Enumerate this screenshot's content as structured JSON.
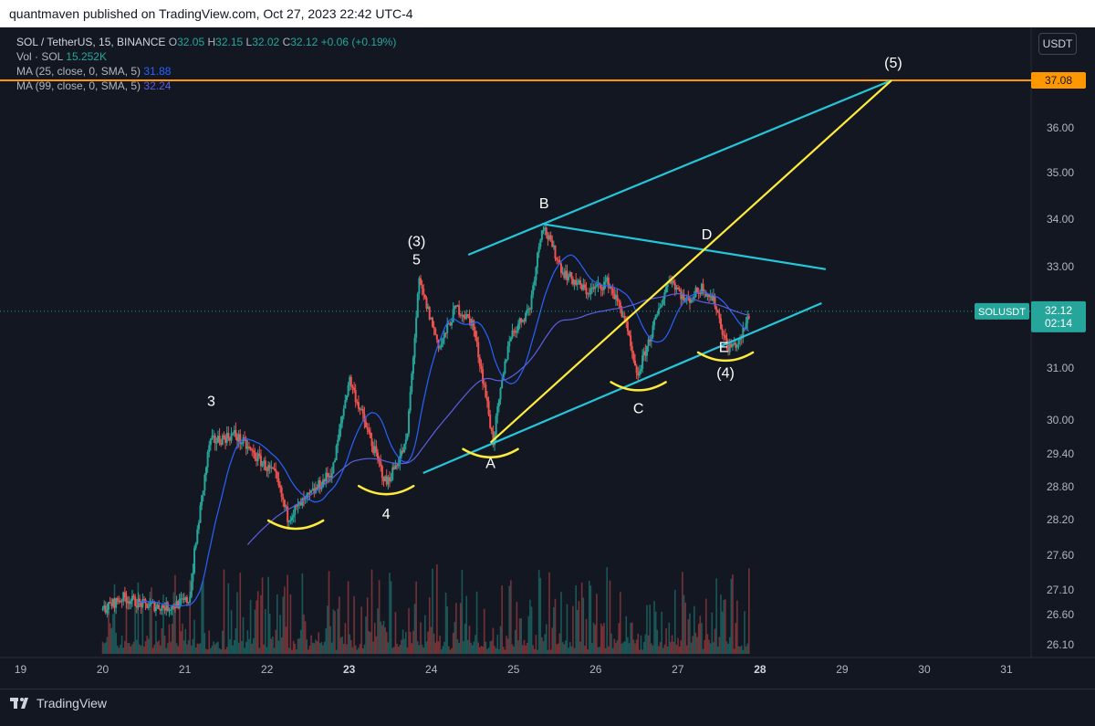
{
  "header": {
    "published": "quantmaven published on TradingView.com, Oct 27, 2023 22:42 UTC-4"
  },
  "legend": {
    "symbol": "SOL / TetherUS, 15, BINANCE",
    "ohlc": [
      {
        "k": "O",
        "v": "32.05"
      },
      {
        "k": "H",
        "v": "32.15"
      },
      {
        "k": "L",
        "v": "32.02"
      },
      {
        "k": "C",
        "v": "32.12"
      }
    ],
    "change": "+0.06 (+0.19%)",
    "vol_label": "Vol · SOL",
    "vol_value": "15.252K",
    "ma25_label": "MA (25, close, 0, SMA, 5)",
    "ma25_value": "31.88",
    "ma99_label": "MA (99, close, 0, SMA, 5)",
    "ma99_value": "32.24"
  },
  "quote_currency": "USDT",
  "footer": {
    "brand": "TradingView"
  },
  "colors": {
    "background": "#131722",
    "up": "#26a69a",
    "down": "#ef5350",
    "ma25": "#2962ff",
    "ma99": "#5b5fe0",
    "resistance": "#ff9800",
    "channel": "#26c6da",
    "wave_line": "#ffeb3b",
    "badge": "#26a69a"
  },
  "chart_data": {
    "type": "candlestick",
    "symbol": "SOL / TetherUS",
    "interval": "15",
    "exchange": "BINANCE",
    "y_axis": {
      "ticks": [
        "37.08",
        "36.00",
        "35.00",
        "34.00",
        "33.00",
        "31.00",
        "30.00",
        "29.40",
        "28.80",
        "28.20",
        "27.60",
        "27.10",
        "26.60",
        "26.10"
      ],
      "ylim": [
        25.9,
        38.2
      ]
    },
    "x_axis": {
      "ticks": [
        "19",
        "20",
        "21",
        "22",
        "23",
        "24",
        "25",
        "26",
        "27",
        "28",
        "29",
        "30",
        "31"
      ],
      "xlim": [
        18.75,
        31.3
      ]
    },
    "resistance": {
      "price": 37.08,
      "label": "37.08"
    },
    "last_price": {
      "symbol": "SOLUSDT",
      "price": "32.12",
      "countdown": "02:14"
    },
    "price_path": [
      [
        20.0,
        26.7
      ],
      [
        20.25,
        26.95
      ],
      [
        20.5,
        26.8
      ],
      [
        20.8,
        26.75
      ],
      [
        21.05,
        26.9
      ],
      [
        21.3,
        29.6
      ],
      [
        21.6,
        29.75
      ],
      [
        21.9,
        29.3
      ],
      [
        22.1,
        29.0
      ],
      [
        22.25,
        28.25
      ],
      [
        22.5,
        28.6
      ],
      [
        22.8,
        29.1
      ],
      [
        23.0,
        30.8
      ],
      [
        23.2,
        29.9
      ],
      [
        23.45,
        28.85
      ],
      [
        23.7,
        29.6
      ],
      [
        23.85,
        32.7
      ],
      [
        24.1,
        31.4
      ],
      [
        24.3,
        32.2
      ],
      [
        24.5,
        31.9
      ],
      [
        24.65,
        30.6
      ],
      [
        24.75,
        29.6
      ],
      [
        24.95,
        31.6
      ],
      [
        25.2,
        32.2
      ],
      [
        25.35,
        33.9
      ],
      [
        25.6,
        32.9
      ],
      [
        25.9,
        32.5
      ],
      [
        26.15,
        32.7
      ],
      [
        26.35,
        32.0
      ],
      [
        26.5,
        30.8
      ],
      [
        26.7,
        31.8
      ],
      [
        26.9,
        32.8
      ],
      [
        27.1,
        32.3
      ],
      [
        27.3,
        32.6
      ],
      [
        27.45,
        32.3
      ],
      [
        27.6,
        31.4
      ],
      [
        27.75,
        31.5
      ],
      [
        27.88,
        32.12
      ]
    ],
    "volume_level": "low",
    "annotations": {
      "points": [
        {
          "id": "b",
          "label": "B",
          "x": 25.35,
          "y": 34.0
        },
        {
          "id": "d",
          "label": "D",
          "x": 27.33,
          "y": 33.35
        },
        {
          "id": "c",
          "label": "C",
          "x": 26.52,
          "y": 30.8
        },
        {
          "id": "a",
          "label": "A",
          "x": 24.72,
          "y": 29.6
        },
        {
          "id": "e",
          "label": "E",
          "x": 27.58,
          "y": 31.42
        },
        {
          "id": "wave-3-top",
          "label": "3",
          "x": 21.32,
          "y": 29.8
        },
        {
          "id": "wave-5-top",
          "label": "5",
          "x": 23.82,
          "y": 32.72
        },
        {
          "id": "wave-(3)",
          "label": "(3)",
          "x": 23.82,
          "y": 32.72
        },
        {
          "id": "wave-4-low",
          "label": "4",
          "x": 23.45,
          "y": 28.88
        },
        {
          "id": "wave-(4)",
          "label": "(4)",
          "x": 27.58,
          "y": 31.42
        },
        {
          "id": "wave-(5)",
          "label": "(5)",
          "x": 29.6,
          "y": 37.08
        }
      ],
      "lines": [
        {
          "id": "channel-upper",
          "from": [
            24.45,
            33.25
          ],
          "to": [
            29.6,
            37.08
          ]
        },
        {
          "id": "triangle-top",
          "from": [
            25.35,
            33.9
          ],
          "to": [
            28.8,
            32.95
          ]
        },
        {
          "id": "triangle-bottom",
          "from": [
            23.9,
            29.05
          ],
          "to": [
            28.75,
            32.28
          ]
        },
        {
          "id": "wave-projection",
          "from": [
            24.72,
            29.6
          ],
          "to": [
            29.6,
            37.08
          ]
        }
      ],
      "arcs": [
        {
          "id": "arc-wave2-low",
          "x": 22.35,
          "y": 28.25
        },
        {
          "id": "arc-wave4-low",
          "x": 23.45,
          "y": 28.88
        },
        {
          "id": "arc-a-low",
          "x": 24.72,
          "y": 29.55
        },
        {
          "id": "arc-c-low",
          "x": 26.52,
          "y": 30.8
        },
        {
          "id": "arc-e-low",
          "x": 27.58,
          "y": 31.38
        }
      ]
    }
  }
}
